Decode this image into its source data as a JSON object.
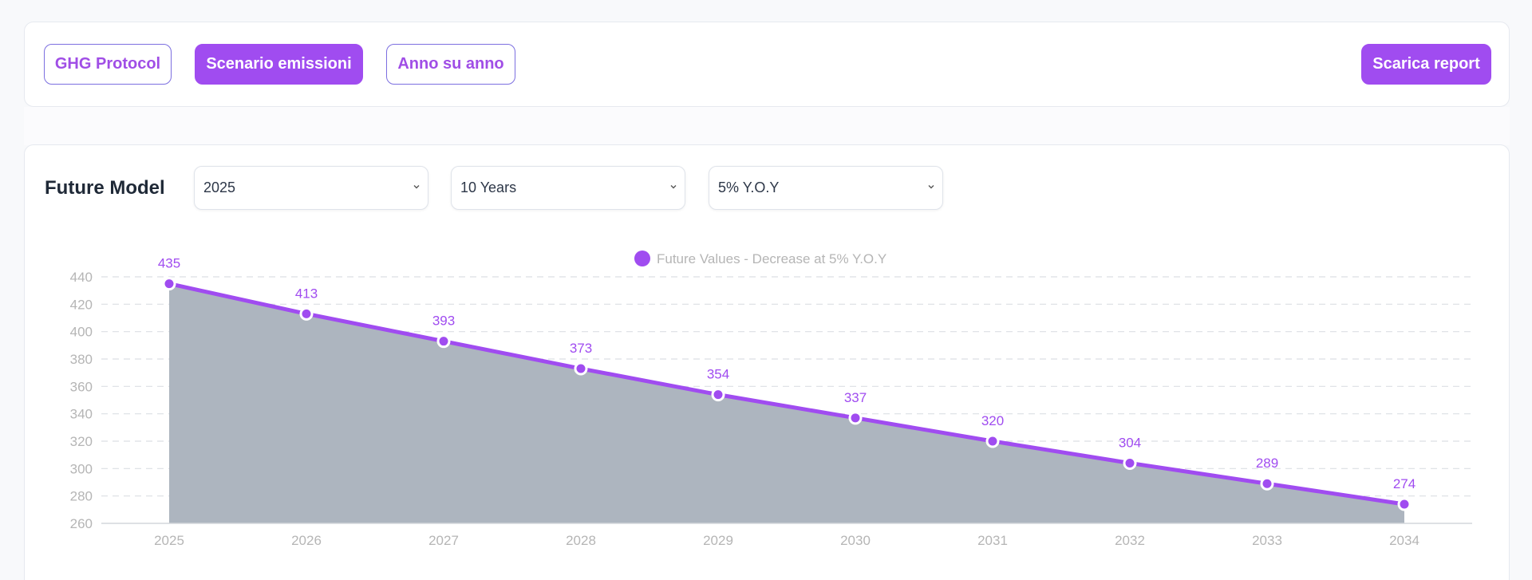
{
  "tabs": {
    "ghg": "GHG Protocol",
    "scenario": "Scenario emissioni",
    "yoy": "Anno su anno"
  },
  "download_label": "Scarica report",
  "model": {
    "title": "Future Model",
    "start_year": "2025",
    "horizon": "10 Years",
    "rate": "5% Y.O.Y"
  },
  "colors": {
    "accent": "#a04cf0",
    "area_fill": "#adb5bf",
    "grid": "#dcdfe4",
    "axis_text": "#b5b5b5"
  },
  "chart_data": {
    "type": "area",
    "legend": "Future Values - Decrease at 5% Y.O.Y",
    "x": [
      "2025",
      "2026",
      "2027",
      "2028",
      "2029",
      "2030",
      "2031",
      "2032",
      "2033",
      "2034"
    ],
    "series": [
      {
        "name": "Future Values - Decrease at 5% Y.O.Y",
        "values": [
          435,
          413,
          393,
          373,
          354,
          337,
          320,
          304,
          289,
          274
        ]
      }
    ],
    "ylim": [
      260,
      440
    ],
    "yticks": [
      440,
      420,
      400,
      380,
      360,
      340,
      320,
      300,
      280,
      260
    ],
    "grid": true,
    "legend_position": "top-center"
  }
}
